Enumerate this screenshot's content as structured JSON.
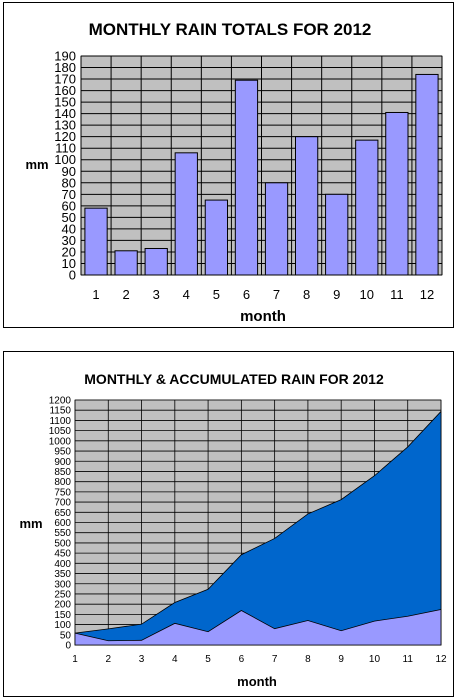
{
  "chart_data": [
    {
      "type": "bar",
      "title": "MONTHLY RAIN TOTALS FOR 2012",
      "xlabel": "month",
      "ylabel": "mm",
      "categories": [
        "1",
        "2",
        "3",
        "4",
        "5",
        "6",
        "7",
        "8",
        "9",
        "10",
        "11",
        "12"
      ],
      "values": [
        58,
        21,
        23,
        106,
        65,
        169,
        80,
        120,
        70,
        117,
        141,
        174
      ],
      "ylim": [
        0,
        190
      ],
      "ytick_step": 10,
      "grid": true,
      "colors": {
        "plot_bg": "#c0c0c0",
        "bar": "#9999ff",
        "bar_edge": "#000000"
      }
    },
    {
      "type": "area",
      "title": "MONTHLY & ACCUMULATED RAIN FOR 2012",
      "xlabel": "month",
      "ylabel": "mm",
      "x": [
        1,
        2,
        3,
        4,
        5,
        6,
        7,
        8,
        9,
        10,
        11,
        12
      ],
      "series": [
        {
          "values": [
            58,
            79,
            102,
            208,
            273,
            442,
            522,
            642,
            712,
            829,
            970,
            1144
          ]
        },
        {
          "values": [
            58,
            21,
            23,
            106,
            65,
            169,
            80,
            120,
            70,
            117,
            141,
            174
          ]
        }
      ],
      "xlim": [
        1,
        12
      ],
      "ylim": [
        0,
        1200
      ],
      "ytick_step": 50,
      "grid": true,
      "colors": {
        "plot_bg": "#c0c0c0",
        "accumulated": "#0066cc",
        "monthly": "#9999ff"
      }
    }
  ]
}
